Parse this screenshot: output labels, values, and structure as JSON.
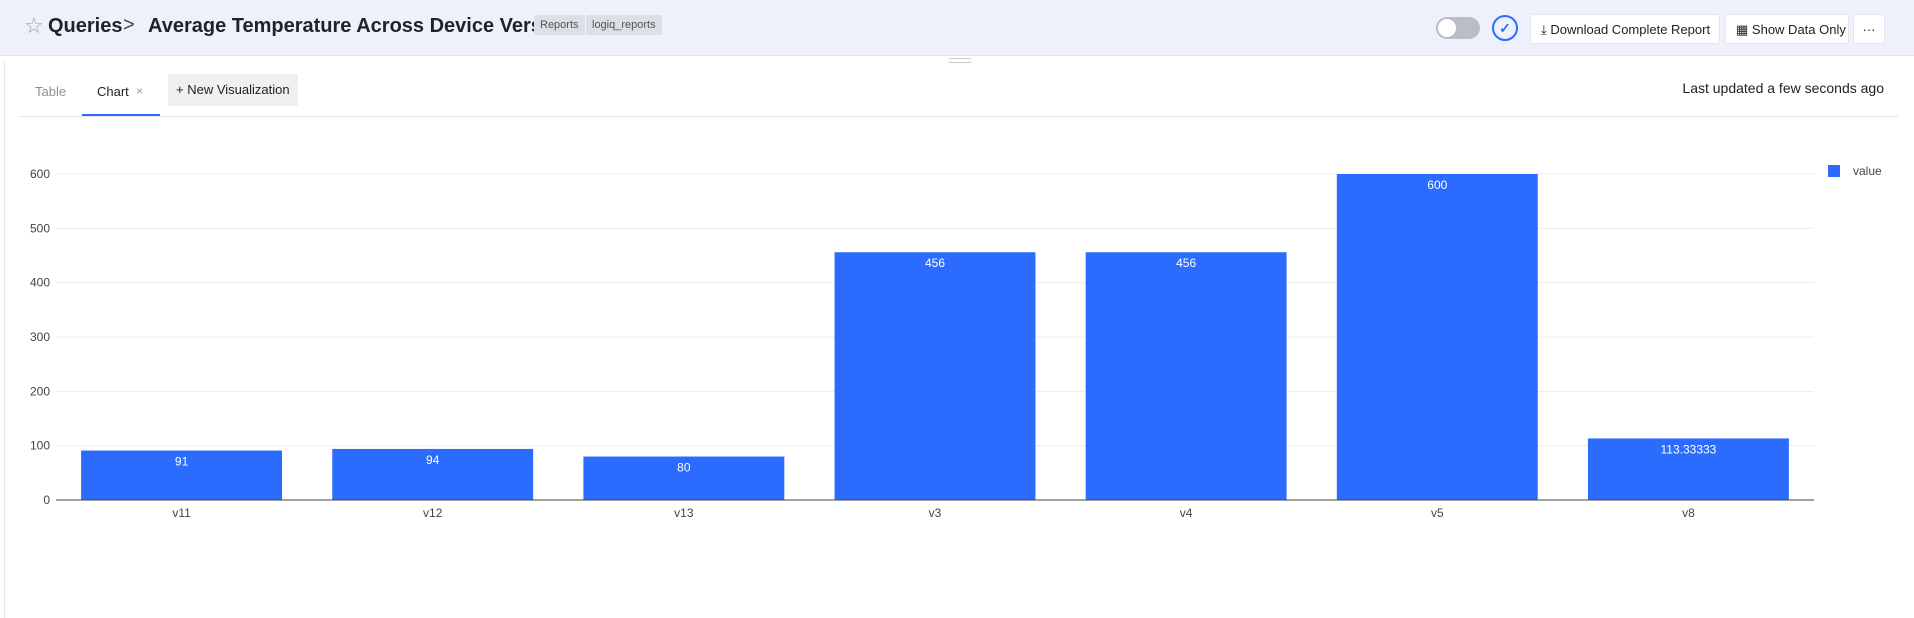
{
  "header": {
    "breadcrumb_root": "Queries",
    "breadcrumb_sep": ">",
    "title": "Average Temperature Across Device Versions",
    "tags": [
      "Reports",
      "logiq_reports"
    ],
    "download_label": "Download Complete Report",
    "show_data_label": "Show Data Only",
    "more_label": "···"
  },
  "tabs": {
    "table_label": "Table",
    "chart_label": "Chart",
    "new_viz_label": "+ New Visualization"
  },
  "status": {
    "updated": "Last updated a few seconds ago"
  },
  "colors": {
    "bar": "#2b6cff",
    "accent": "#2b6cff"
  },
  "chart_data": {
    "type": "bar",
    "categories": [
      "v11",
      "v12",
      "v13",
      "v3",
      "v4",
      "v5",
      "v8"
    ],
    "series": [
      {
        "name": "value",
        "values": [
          91,
          94,
          80,
          456,
          456,
          600,
          113.33333
        ]
      }
    ],
    "data_labels": [
      "91",
      "94",
      "80",
      "456",
      "456",
      "600",
      "113.33333"
    ],
    "yticks": [
      0,
      100,
      200,
      300,
      400,
      500,
      600
    ],
    "ylim": [
      0,
      600
    ],
    "grid": true,
    "legend_position": "top-right"
  }
}
